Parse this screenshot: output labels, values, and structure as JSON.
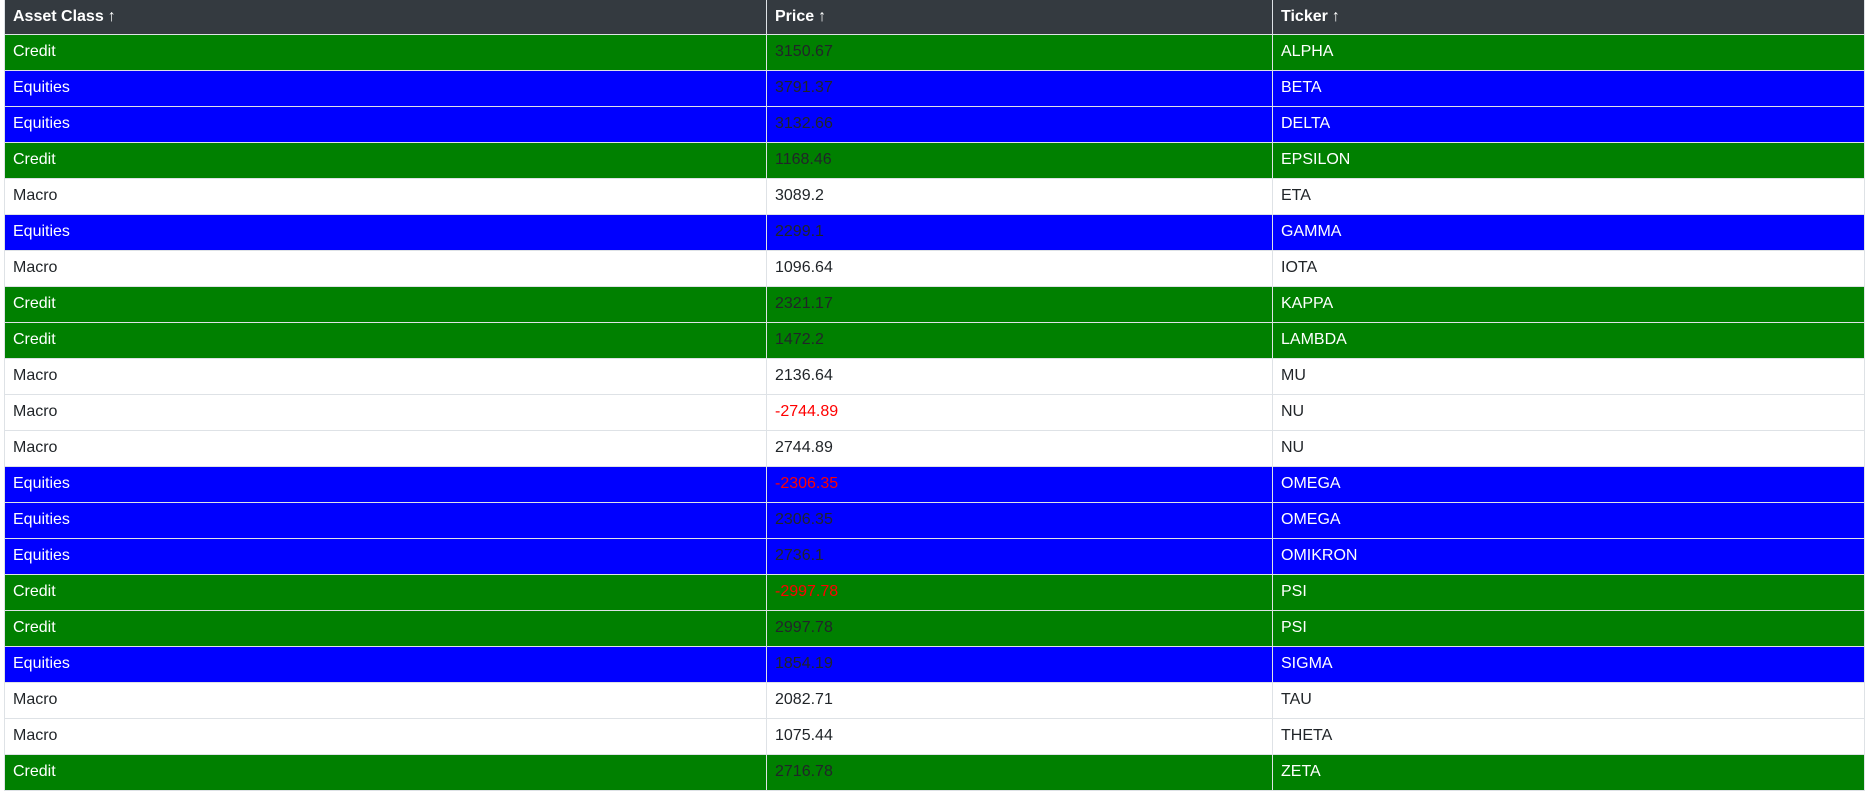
{
  "table": {
    "headers": [
      {
        "label": "Asset Class",
        "sort": "↑"
      },
      {
        "label": "Price",
        "sort": "↑"
      },
      {
        "label": "Ticker",
        "sort": "↑"
      }
    ],
    "rows": [
      {
        "asset_class": "Credit",
        "price": "3150.67",
        "ticker": "ALPHA"
      },
      {
        "asset_class": "Equities",
        "price": "3791.37",
        "ticker": "BETA"
      },
      {
        "asset_class": "Equities",
        "price": "3132.66",
        "ticker": "DELTA"
      },
      {
        "asset_class": "Credit",
        "price": "1168.46",
        "ticker": "EPSILON"
      },
      {
        "asset_class": "Macro",
        "price": "3089.2",
        "ticker": "ETA"
      },
      {
        "asset_class": "Equities",
        "price": "2299.1",
        "ticker": "GAMMA"
      },
      {
        "asset_class": "Macro",
        "price": "1096.64",
        "ticker": "IOTA"
      },
      {
        "asset_class": "Credit",
        "price": "2321.17",
        "ticker": "KAPPA"
      },
      {
        "asset_class": "Credit",
        "price": "1472.2",
        "ticker": "LAMBDA"
      },
      {
        "asset_class": "Macro",
        "price": "2136.64",
        "ticker": "MU"
      },
      {
        "asset_class": "Macro",
        "price": "-2744.89",
        "ticker": "NU"
      },
      {
        "asset_class": "Macro",
        "price": "2744.89",
        "ticker": "NU"
      },
      {
        "asset_class": "Equities",
        "price": "-2306.35",
        "ticker": "OMEGA"
      },
      {
        "asset_class": "Equities",
        "price": "2306.35",
        "ticker": "OMEGA"
      },
      {
        "asset_class": "Equities",
        "price": "2736.1",
        "ticker": "OMIKRON"
      },
      {
        "asset_class": "Credit",
        "price": "-2997.78",
        "ticker": "PSI"
      },
      {
        "asset_class": "Credit",
        "price": "2997.78",
        "ticker": "PSI"
      },
      {
        "asset_class": "Equities",
        "price": "1854.19",
        "ticker": "SIGMA"
      },
      {
        "asset_class": "Macro",
        "price": "2082.71",
        "ticker": "TAU"
      },
      {
        "asset_class": "Macro",
        "price": "1075.44",
        "ticker": "THETA"
      },
      {
        "asset_class": "Credit",
        "price": "2716.78",
        "ticker": "ZETA"
      }
    ]
  },
  "colors": {
    "header_bg": "#343a40",
    "credit": "#008000",
    "equities": "#0000ff",
    "macro": "#ffffff",
    "negative_price": "#ff0000"
  }
}
